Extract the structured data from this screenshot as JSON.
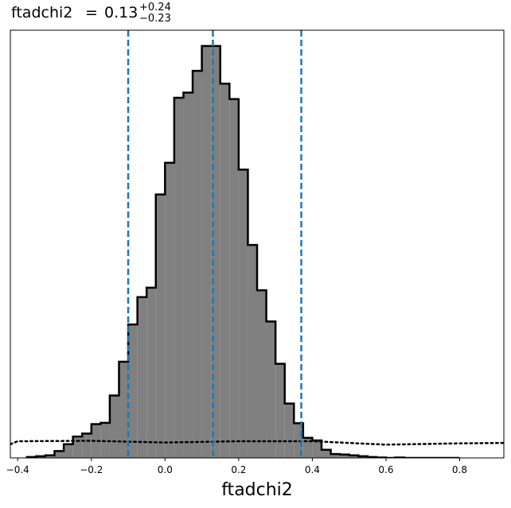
{
  "chart_data": {
    "type": "histogram",
    "title": {
      "param": "ftadchi2",
      "value": "0.13",
      "upper": "+0.24",
      "lower": "−0.23"
    },
    "xlabel": "ftadchi2",
    "xlim": [
      -0.42,
      0.92
    ],
    "xticks": [
      -0.4,
      -0.2,
      0.0,
      0.2,
      0.4,
      0.6,
      0.8
    ],
    "xtick_labels": [
      "−0.4",
      "−0.2",
      "0.0",
      "0.2",
      "0.4",
      "0.6",
      "0.8"
    ],
    "ylim": [
      0,
      1.0
    ],
    "bin_edges": [
      -0.375,
      -0.35,
      -0.325,
      -0.3,
      -0.275,
      -0.25,
      -0.225,
      -0.2,
      -0.175,
      -0.15,
      -0.125,
      -0.1,
      -0.075,
      -0.05,
      -0.025,
      0.0,
      0.025,
      0.05,
      0.075,
      0.1,
      0.125,
      0.15,
      0.175,
      0.2,
      0.225,
      0.25,
      0.275,
      0.3,
      0.325,
      0.35,
      0.375,
      0.4,
      0.425,
      0.45,
      0.475,
      0.5,
      0.525,
      0.55,
      0.575,
      0.6,
      0.625,
      0.65,
      0.675,
      0.7,
      0.725,
      0.75,
      0.775,
      0.8
    ],
    "counts": [
      0.002,
      0.004,
      0.006,
      0.016,
      0.032,
      0.05,
      0.057,
      0.079,
      0.082,
      0.146,
      0.225,
      0.312,
      0.376,
      0.398,
      0.616,
      0.69,
      0.842,
      0.854,
      0.905,
      0.963,
      0.963,
      0.875,
      0.839,
      0.674,
      0.498,
      0.392,
      0.319,
      0.22,
      0.127,
      0.081,
      0.047,
      0.041,
      0.019,
      0.009,
      0.008,
      0.006,
      0.004,
      0.002,
      0.001,
      0.0,
      0.001,
      0.0,
      0.0,
      0.0,
      0.0,
      0.0,
      0.0
    ],
    "step_color": "#000000",
    "fill_color": "#808080",
    "quantile_lines": [
      -0.1,
      0.13,
      0.37
    ],
    "quantile_color": "#1f77b4",
    "prior": {
      "style": "dotted",
      "color": "#000000",
      "x": [
        -0.42,
        -0.4,
        -0.2,
        0.0,
        0.2,
        0.4,
        0.6,
        0.8,
        0.92
      ],
      "y": [
        0.032,
        0.039,
        0.04,
        0.036,
        0.039,
        0.039,
        0.031,
        0.034,
        0.035
      ]
    }
  }
}
